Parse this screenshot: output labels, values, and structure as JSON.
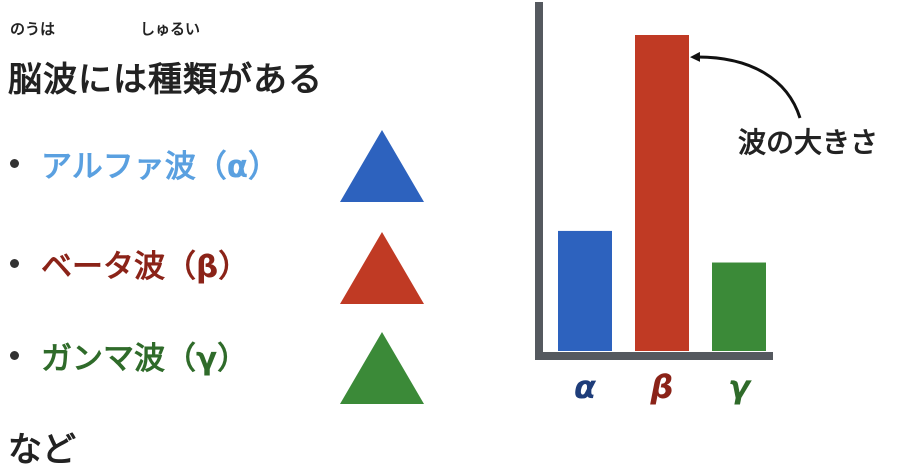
{
  "title": {
    "text": "脳波には種類がある",
    "ruby_nouha": "のうは",
    "ruby_shurui": "しゅるい"
  },
  "items": [
    {
      "label": "アルファ波（α）",
      "color": "#5aa0e0",
      "triangle_color": "#2d62be"
    },
    {
      "label": "ベータ波（β）",
      "color": "#8b2318",
      "triangle_color": "#c03a24"
    },
    {
      "label": "ガンマ波（γ）",
      "color": "#2f6b2a",
      "triangle_color": "#3b8a38"
    }
  ],
  "footer": "など",
  "chart_data": {
    "type": "bar",
    "categories": [
      "α",
      "β",
      "γ"
    ],
    "values": [
      38,
      100,
      28
    ],
    "colors": [
      "#2d62be",
      "#c03a24",
      "#3b8a38"
    ],
    "category_label_colors": [
      "#1e3d7a",
      "#8b2318",
      "#2f6b2a"
    ],
    "ylim": [
      0,
      100
    ],
    "annotation": "波の大きさ"
  }
}
